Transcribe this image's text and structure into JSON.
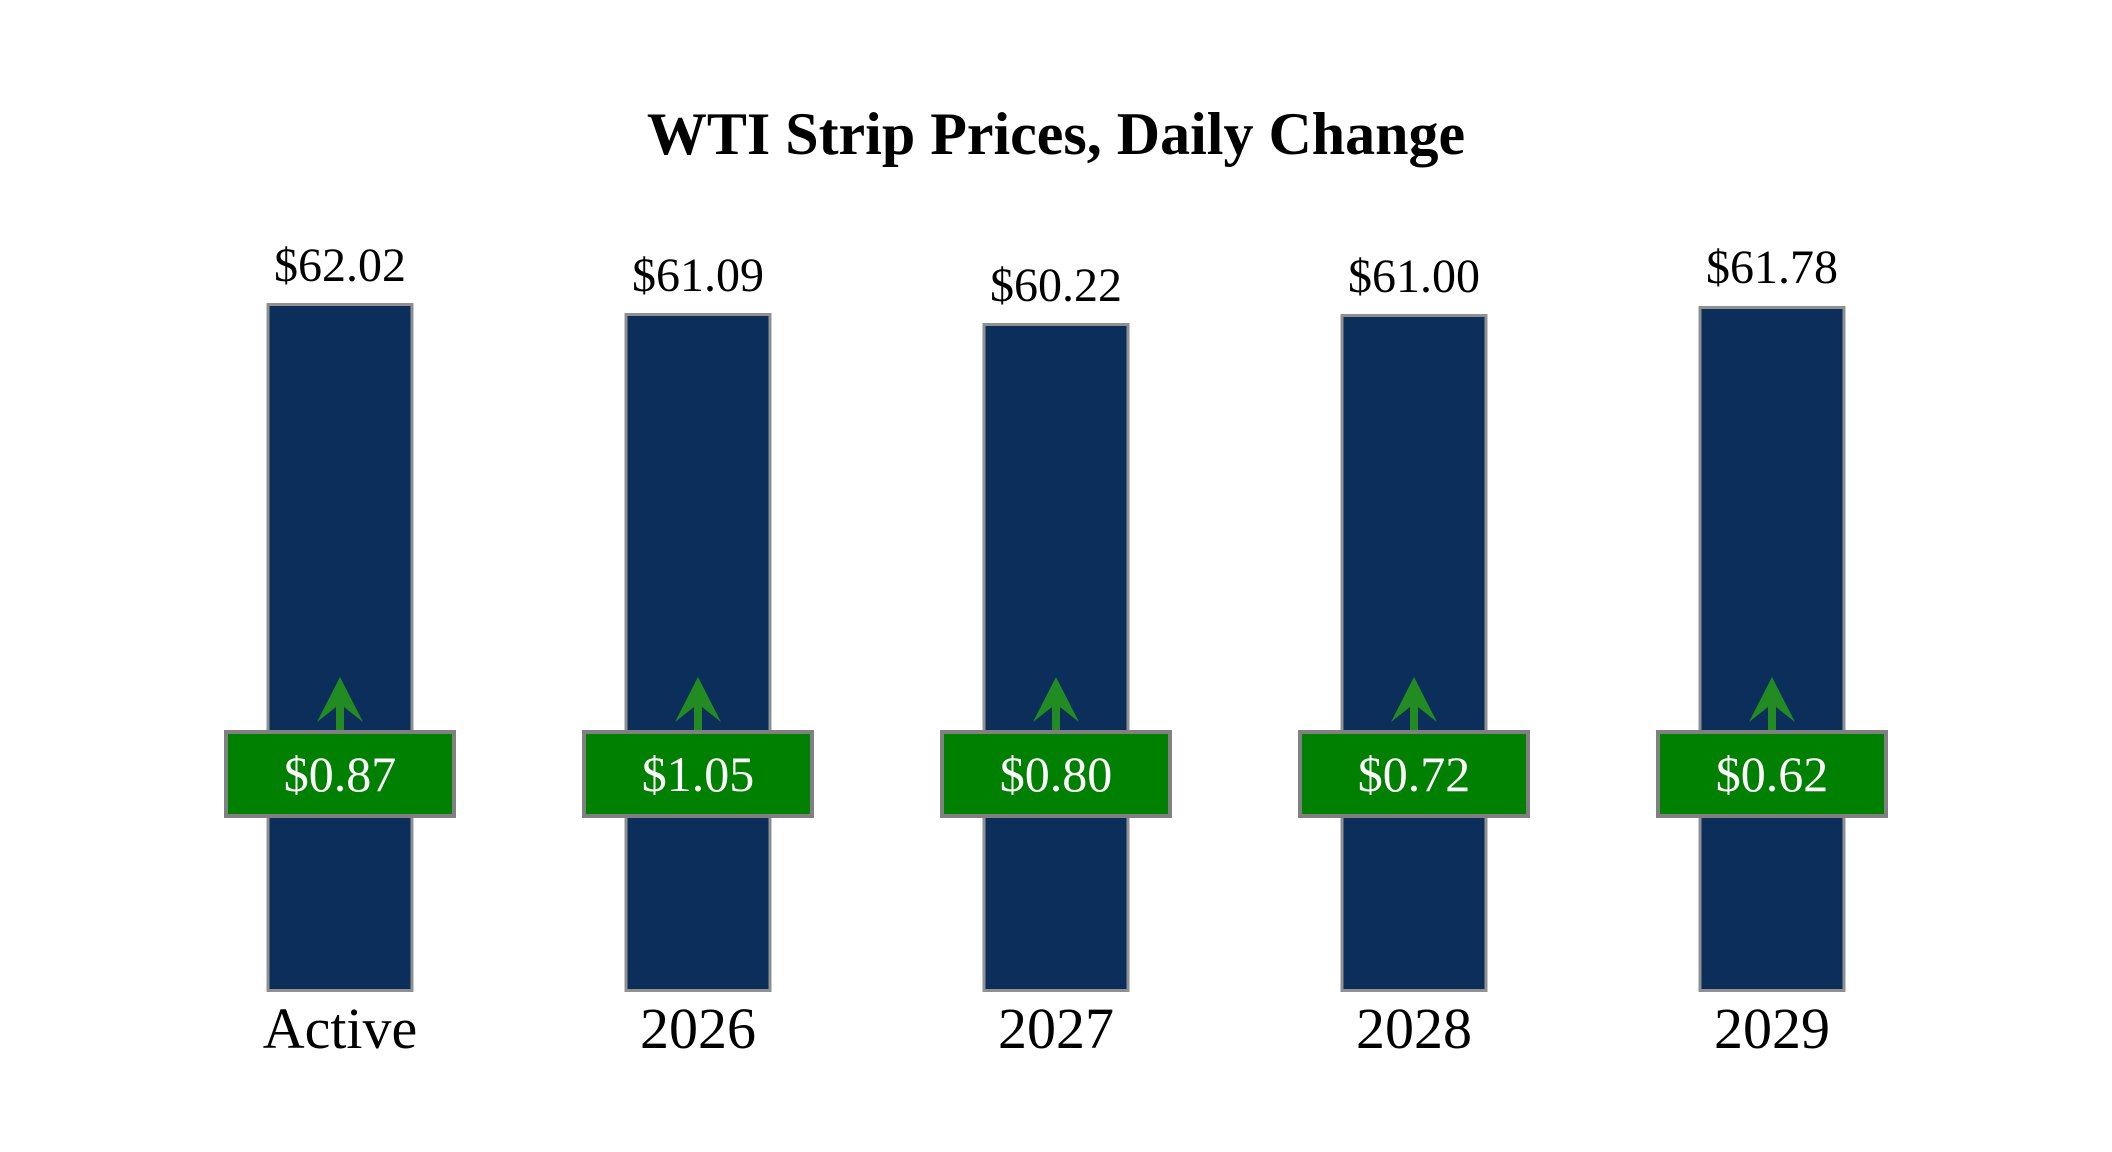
{
  "title": "WTI Strip Prices, Daily Change",
  "chart_data": {
    "type": "bar",
    "title": "WTI Strip Prices, Daily Change",
    "categories": [
      "Active",
      "2026",
      "2027",
      "2028",
      "2029"
    ],
    "series": [
      {
        "name": "WTI Strip Price",
        "values": [
          62.02,
          61.09,
          60.22,
          61.0,
          61.78
        ]
      },
      {
        "name": "Daily Change",
        "values": [
          0.87,
          1.05,
          0.8,
          0.72,
          0.62
        ]
      }
    ],
    "xlabel": "",
    "ylabel": "",
    "ylim": [
      0,
      69
    ],
    "grid": false,
    "legend": "none",
    "axes_visible": false,
    "annotations": [
      "price data labels above each bar",
      "green badge with daily change value overlaid on each bar",
      "green up arrow above each badge indicating increase"
    ]
  },
  "bars": [
    {
      "category": "Active",
      "price": 62.02,
      "price_label": "$62.02",
      "change": 0.87,
      "change_label": "$0.87",
      "direction": "up"
    },
    {
      "category": "2026",
      "price": 61.09,
      "price_label": "$61.09",
      "change": 1.05,
      "change_label": "$1.05",
      "direction": "up"
    },
    {
      "category": "2027",
      "price": 60.22,
      "price_label": "$60.22",
      "change": 0.8,
      "change_label": "$0.80",
      "direction": "up"
    },
    {
      "category": "2028",
      "price": 61.0,
      "price_label": "$61.00",
      "change": 0.72,
      "change_label": "$0.72",
      "direction": "up"
    },
    {
      "category": "2029",
      "price": 61.78,
      "price_label": "$61.78",
      "change": 0.62,
      "change_label": "$0.62",
      "direction": "up"
    }
  ],
  "icons": {
    "up_arrow": "upward arrow meaning daily price increase"
  },
  "colors": {
    "background": "#ffffff",
    "bar_fill": "#0b2f5a",
    "bar_border": "#909090",
    "badge_fill": "#008000",
    "badge_border": "#808080",
    "arrow": "#228b22",
    "badge_text": "#ffffff",
    "label_text": "#000000"
  }
}
